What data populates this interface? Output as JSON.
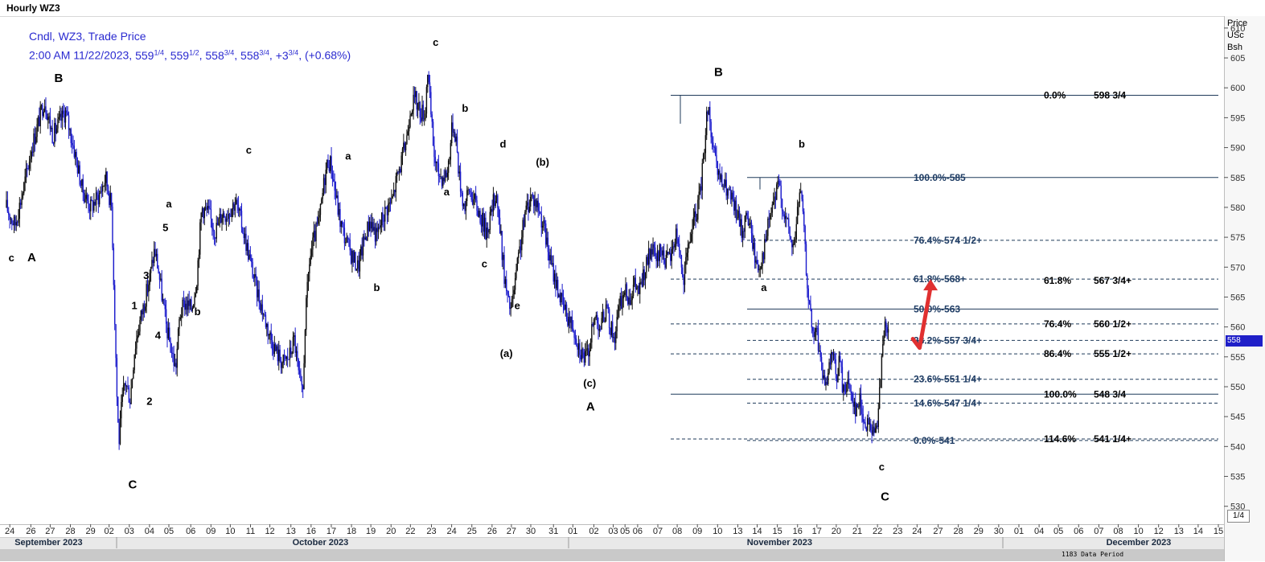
{
  "window": {
    "title": "Hourly WZ3"
  },
  "legend": {
    "line1": "Cndl, WZ3, Trade Price",
    "time": "2:00 AM 11/22/2023, ",
    "open_w": "559",
    "open_f": "1/4",
    "high_w": "559",
    "high_f": "1/2",
    "low_w": "558",
    "low_f": "3/4",
    "close_w": "558",
    "close_f": "3/4",
    "chg_w": "+3",
    "chg_f": "3/4",
    "pct": "(+0.68%)"
  },
  "scale": {
    "header": [
      "Price",
      "USc",
      "Bsh"
    ],
    "last_price": "558",
    "fraction_box": "1/4",
    "footer": "1183 Data Period"
  },
  "colors": {
    "candles": "#1a1acc",
    "candle_dark": "#101010",
    "fib_line": "#1f3a5a",
    "fib_label": "#1e3c64",
    "annotation": "#000000",
    "arrow": "#e03030",
    "legend_text": "#2a2ad0",
    "last_tag": "#1f1fc8"
  },
  "chart_data": {
    "type": "candlestick",
    "y_axis": {
      "min": 527,
      "max": 612,
      "ticks": [
        530,
        535,
        540,
        545,
        550,
        555,
        560,
        565,
        570,
        575,
        580,
        585,
        590,
        595,
        600,
        605,
        610
      ],
      "position": "right"
    },
    "x_axis": {
      "ticks": [
        {
          "i": 4,
          "label": "24"
        },
        {
          "i": 29,
          "label": "26"
        },
        {
          "i": 52,
          "label": "27"
        },
        {
          "i": 76,
          "label": "28"
        },
        {
          "i": 100,
          "label": "29"
        },
        {
          "i": 122,
          "label": "02"
        },
        {
          "i": 146,
          "label": "03"
        },
        {
          "i": 170,
          "label": "04"
        },
        {
          "i": 193,
          "label": "05"
        },
        {
          "i": 219,
          "label": "06"
        },
        {
          "i": 243,
          "label": "09"
        },
        {
          "i": 266,
          "label": "10"
        },
        {
          "i": 290,
          "label": "11"
        },
        {
          "i": 313,
          "label": "12"
        },
        {
          "i": 338,
          "label": "13"
        },
        {
          "i": 362,
          "label": "16"
        },
        {
          "i": 386,
          "label": "17"
        },
        {
          "i": 410,
          "label": "18"
        },
        {
          "i": 433,
          "label": "19"
        },
        {
          "i": 457,
          "label": "20"
        },
        {
          "i": 480,
          "label": "22"
        },
        {
          "i": 505,
          "label": "23"
        },
        {
          "i": 529,
          "label": "24"
        },
        {
          "i": 553,
          "label": "25"
        },
        {
          "i": 577,
          "label": "26"
        },
        {
          "i": 600,
          "label": "27"
        },
        {
          "i": 623,
          "label": "30"
        },
        {
          "i": 650,
          "label": "31"
        },
        {
          "i": 673,
          "label": "01"
        },
        {
          "i": 698,
          "label": "02"
        },
        {
          "i": 721,
          "label": "03"
        },
        {
          "i": 735,
          "label": "05"
        },
        {
          "i": 750,
          "label": "06"
        },
        {
          "i": 774,
          "label": "07"
        },
        {
          "i": 797,
          "label": "08"
        },
        {
          "i": 821,
          "label": "09"
        },
        {
          "i": 845,
          "label": "10"
        },
        {
          "i": 869,
          "label": "13"
        },
        {
          "i": 892,
          "label": "14"
        },
        {
          "i": 916,
          "label": "15"
        },
        {
          "i": 940,
          "label": "16"
        },
        {
          "i": 963,
          "label": "17"
        },
        {
          "i": 986,
          "label": "20"
        },
        {
          "i": 1011,
          "label": "21"
        },
        {
          "i": 1035,
          "label": "22"
        },
        {
          "i": 1059,
          "label": "23"
        },
        {
          "i": 1082,
          "label": "24"
        },
        {
          "i": 1107,
          "label": "27"
        },
        {
          "i": 1131,
          "label": "28"
        },
        {
          "i": 1155,
          "label": "29"
        },
        {
          "i": 1179,
          "label": "30"
        },
        {
          "i": 1203,
          "label": "01"
        },
        {
          "i": 1227,
          "label": "04"
        },
        {
          "i": 1250,
          "label": "05"
        },
        {
          "i": 1274,
          "label": "06"
        },
        {
          "i": 1298,
          "label": "07"
        },
        {
          "i": 1321,
          "label": "08"
        },
        {
          "i": 1345,
          "label": "10"
        },
        {
          "i": 1369,
          "label": "12"
        },
        {
          "i": 1393,
          "label": "13"
        },
        {
          "i": 1416,
          "label": "14"
        },
        {
          "i": 1440,
          "label": "15"
        }
      ],
      "months": [
        {
          "i": 48,
          "label": "September 2023"
        },
        {
          "i": 378,
          "label": "October 2023"
        },
        {
          "i": 918,
          "label": "November 2023"
        },
        {
          "i": 1345,
          "label": "December 2023"
        }
      ]
    },
    "price_path": [
      [
        0,
        580
      ],
      [
        10,
        577
      ],
      [
        20,
        583
      ],
      [
        30,
        590
      ],
      [
        45,
        598
      ],
      [
        55,
        592
      ],
      [
        70,
        596
      ],
      [
        80,
        590
      ],
      [
        90,
        583
      ],
      [
        100,
        580
      ],
      [
        110,
        582
      ],
      [
        118,
        585
      ],
      [
        125,
        580
      ],
      [
        129,
        560
      ],
      [
        132,
        545
      ],
      [
        134,
        541
      ],
      [
        137,
        547
      ],
      [
        141,
        551
      ],
      [
        147,
        548
      ],
      [
        152,
        556
      ],
      [
        157,
        560
      ],
      [
        162,
        563
      ],
      [
        170,
        568
      ],
      [
        176,
        573
      ],
      [
        180,
        570
      ],
      [
        185,
        565
      ],
      [
        190,
        560
      ],
      [
        196,
        556
      ],
      [
        201,
        553
      ],
      [
        206,
        562
      ],
      [
        212,
        564
      ],
      [
        220,
        563
      ],
      [
        226,
        568
      ],
      [
        232,
        580
      ],
      [
        240,
        579
      ],
      [
        248,
        576
      ],
      [
        256,
        579
      ],
      [
        262,
        579
      ],
      [
        272,
        581
      ],
      [
        280,
        577
      ],
      [
        288,
        572
      ],
      [
        296,
        567
      ],
      [
        304,
        563
      ],
      [
        312,
        559
      ],
      [
        320,
        556
      ],
      [
        328,
        554
      ],
      [
        336,
        555
      ],
      [
        342,
        558
      ],
      [
        348,
        551
      ],
      [
        352,
        548
      ],
      [
        355,
        561
      ],
      [
        360,
        571
      ],
      [
        366,
        575
      ],
      [
        372,
        578
      ],
      [
        378,
        585
      ],
      [
        382,
        588
      ],
      [
        386,
        587
      ],
      [
        390,
        583
      ],
      [
        396,
        578
      ],
      [
        402,
        575
      ],
      [
        410,
        572
      ],
      [
        418,
        570
      ],
      [
        424,
        574
      ],
      [
        432,
        578
      ],
      [
        440,
        575
      ],
      [
        446,
        578
      ],
      [
        452,
        580
      ],
      [
        458,
        581
      ],
      [
        464,
        585
      ],
      [
        470,
        588
      ],
      [
        476,
        592
      ],
      [
        480,
        597
      ],
      [
        486,
        598
      ],
      [
        492,
        596
      ],
      [
        498,
        596
      ],
      [
        500,
        604
      ],
      [
        504,
        596
      ],
      [
        508,
        589
      ],
      [
        512,
        586
      ],
      [
        518,
        585
      ],
      [
        524,
        586
      ],
      [
        530,
        594
      ],
      [
        534,
        592
      ],
      [
        538,
        585
      ],
      [
        544,
        580
      ],
      [
        550,
        583
      ],
      [
        556,
        581
      ],
      [
        562,
        579
      ],
      [
        570,
        576
      ],
      [
        576,
        579
      ],
      [
        582,
        583
      ],
      [
        585,
        578
      ],
      [
        588,
        574
      ],
      [
        592,
        568
      ],
      [
        596,
        564
      ],
      [
        600,
        563
      ],
      [
        606,
        569
      ],
      [
        612,
        575
      ],
      [
        618,
        580
      ],
      [
        624,
        582
      ],
      [
        632,
        580
      ],
      [
        638,
        577
      ],
      [
        646,
        571
      ],
      [
        652,
        568
      ],
      [
        660,
        564
      ],
      [
        666,
        562
      ],
      [
        674,
        560
      ],
      [
        680,
        557
      ],
      [
        686,
        555
      ],
      [
        690,
        555
      ],
      [
        694,
        558
      ],
      [
        700,
        562
      ],
      [
        706,
        560
      ],
      [
        712,
        563
      ],
      [
        716,
        561
      ],
      [
        722,
        558
      ],
      [
        728,
        563
      ],
      [
        734,
        566
      ],
      [
        740,
        565
      ],
      [
        746,
        567
      ],
      [
        752,
        566
      ],
      [
        760,
        570
      ],
      [
        766,
        573
      ],
      [
        772,
        571
      ],
      [
        778,
        573
      ],
      [
        784,
        571
      ],
      [
        790,
        572
      ],
      [
        796,
        576
      ],
      [
        800,
        573
      ],
      [
        804,
        567
      ],
      [
        808,
        571
      ],
      [
        812,
        575
      ],
      [
        818,
        578
      ],
      [
        824,
        582
      ],
      [
        828,
        588
      ],
      [
        832,
        595
      ],
      [
        834,
        598
      ],
      [
        838,
        591
      ],
      [
        844,
        586
      ],
      [
        850,
        584
      ],
      [
        856,
        583
      ],
      [
        862,
        581
      ],
      [
        868,
        579
      ],
      [
        874,
        576
      ],
      [
        880,
        579
      ],
      [
        886,
        575
      ],
      [
        890,
        571
      ],
      [
        894,
        570
      ],
      [
        898,
        572
      ],
      [
        902,
        574
      ],
      [
        906,
        578
      ],
      [
        912,
        581
      ],
      [
        918,
        584
      ],
      [
        924,
        579
      ],
      [
        930,
        576
      ],
      [
        934,
        573
      ],
      [
        938,
        576
      ],
      [
        942,
        583
      ],
      [
        946,
        580
      ],
      [
        950,
        570
      ],
      [
        954,
        564
      ],
      [
        958,
        558
      ],
      [
        962,
        560
      ],
      [
        966,
        556
      ],
      [
        970,
        552
      ],
      [
        974,
        549
      ],
      [
        978,
        553
      ],
      [
        982,
        556
      ],
      [
        986,
        551
      ],
      [
        990,
        555
      ],
      [
        994,
        549
      ],
      [
        998,
        551
      ],
      [
        1004,
        549
      ],
      [
        1010,
        546
      ],
      [
        1014,
        548
      ],
      [
        1018,
        545
      ],
      [
        1022,
        543
      ],
      [
        1026,
        544
      ],
      [
        1030,
        542
      ],
      [
        1034,
        543
      ],
      [
        1038,
        552
      ],
      [
        1042,
        557
      ],
      [
        1044,
        560
      ],
      [
        1048,
        559
      ]
    ],
    "fib_levels": [
      {
        "price": 598.75,
        "x0": 834,
        "x1": 1515,
        "style": "solid",
        "pct": "0.0%",
        "value": "598 3/4",
        "group": "right"
      },
      {
        "price": 585,
        "x0": 929,
        "x1": 1515,
        "style": "solid",
        "pct": "100.0%",
        "value": "585",
        "group": "mid"
      },
      {
        "price": 574.5,
        "x0": 929,
        "x1": 1515,
        "style": "dash",
        "pct": "76.4%",
        "value": "574 1/2+",
        "group": "mid"
      },
      {
        "price": 568,
        "x0": 834,
        "x1": 1515,
        "style": "dash",
        "pct": "61.8%",
        "value": "568+",
        "group": "mid"
      },
      {
        "price": 567.75,
        "x0": 1515,
        "x1": 1515,
        "style": "none",
        "pct": "61.8%",
        "value": "567 3/4+",
        "group": "right"
      },
      {
        "price": 563,
        "x0": 929,
        "x1": 1515,
        "style": "solid",
        "pct": "50.0%",
        "value": "563",
        "group": "mid"
      },
      {
        "price": 560.5,
        "x0": 834,
        "x1": 1515,
        "style": "dash",
        "pct": "76.4%",
        "value": "560 1/2+",
        "group": "right"
      },
      {
        "price": 557.75,
        "x0": 929,
        "x1": 1515,
        "style": "dash",
        "pct": "38.2%",
        "value": "557 3/4+",
        "group": "mid"
      },
      {
        "price": 555.5,
        "x0": 834,
        "x1": 1515,
        "style": "dash",
        "pct": "86.4%",
        "value": "555 1/2+",
        "group": "right"
      },
      {
        "price": 551.25,
        "x0": 929,
        "x1": 1515,
        "style": "dash",
        "pct": "23.6%",
        "value": "551 1/4+",
        "group": "mid"
      },
      {
        "price": 548.75,
        "x0": 834,
        "x1": 1515,
        "style": "solid",
        "pct": "100.0%",
        "value": "548 3/4",
        "group": "right"
      },
      {
        "price": 547.25,
        "x0": 929,
        "x1": 1515,
        "style": "dash",
        "pct": "14.6%",
        "value": "547 1/4+",
        "group": "mid"
      },
      {
        "price": 541,
        "x0": 929,
        "x1": 1515,
        "style": "dash",
        "pct": "0.0%",
        "value": "541",
        "group": "mid"
      },
      {
        "price": 541.25,
        "x0": 834,
        "x1": 1515,
        "style": "dash",
        "pct": "114.6%",
        "value": "541 1/4+",
        "group": "right"
      }
    ],
    "wave_labels": [
      {
        "i": 6,
        "p": 571,
        "t": "c"
      },
      {
        "i": 30,
        "p": 571,
        "t": "A"
      },
      {
        "i": 62,
        "p": 601,
        "t": "B"
      },
      {
        "i": 150,
        "p": 533,
        "t": "C"
      },
      {
        "i": 152,
        "p": 563,
        "t": "1"
      },
      {
        "i": 170,
        "p": 547,
        "t": "2"
      },
      {
        "i": 166,
        "p": 568,
        "t": "3"
      },
      {
        "i": 180,
        "p": 558,
        "t": "4"
      },
      {
        "i": 189,
        "p": 576,
        "t": "5"
      },
      {
        "i": 193,
        "p": 580,
        "t": "a"
      },
      {
        "i": 227,
        "p": 562,
        "t": "b"
      },
      {
        "i": 288,
        "p": 589,
        "t": "c"
      },
      {
        "i": 406,
        "p": 588,
        "t": "a"
      },
      {
        "i": 440,
        "p": 566,
        "t": "b"
      },
      {
        "i": 510,
        "p": 607,
        "t": "c"
      },
      {
        "i": 545,
        "p": 596,
        "t": "b"
      },
      {
        "i": 523,
        "p": 582,
        "t": "a"
      },
      {
        "i": 590,
        "p": 590,
        "t": "d"
      },
      {
        "i": 568,
        "p": 570,
        "t": "c"
      },
      {
        "i": 607,
        "p": 563,
        "t": "e"
      },
      {
        "i": 594,
        "p": 555,
        "t": "(a)"
      },
      {
        "i": 637,
        "p": 587,
        "t": "(b)"
      },
      {
        "i": 693,
        "p": 550,
        "t": "(c)"
      },
      {
        "i": 694,
        "p": 546,
        "t": "A"
      },
      {
        "i": 846,
        "p": 602,
        "t": "B"
      },
      {
        "i": 945,
        "p": 590,
        "t": "b"
      },
      {
        "i": 900,
        "p": 566,
        "t": "a"
      },
      {
        "i": 1040,
        "p": 536,
        "t": "c"
      },
      {
        "i": 1044,
        "p": 531,
        "t": "C"
      }
    ],
    "arrow": {
      "from": [
        1077,
        558
      ],
      "mid": [
        1085,
        556.5
      ],
      "to": [
        1098,
        568
      ]
    }
  }
}
